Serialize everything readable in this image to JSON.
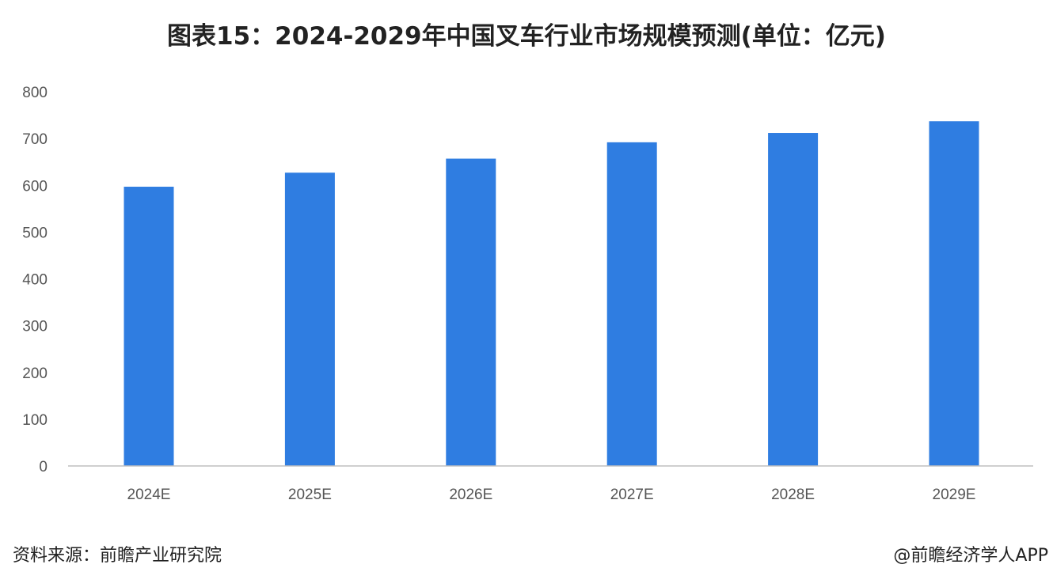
{
  "title": "图表15：2024-2029年中国叉车行业市场规模预测(单位：亿元)",
  "footer": {
    "source": "资料来源：前瞻产业研究院",
    "credit": "@前瞻经济学人APP"
  },
  "colors": {
    "bar": "#2f7de1",
    "axis": "#bfbfbf"
  },
  "chart_data": {
    "type": "bar",
    "title": "图表15：2024-2029年中国叉车行业市场规模预测(单位：亿元)",
    "categories": [
      "2024E",
      "2025E",
      "2026E",
      "2027E",
      "2028E",
      "2029E"
    ],
    "values": [
      597,
      627,
      657,
      692,
      712,
      737
    ],
    "ylim": [
      0,
      800
    ],
    "yticks": [
      0,
      100,
      200,
      300,
      400,
      500,
      600,
      700,
      800
    ],
    "xlabel": "",
    "ylabel": "",
    "grid": false,
    "legend": "none"
  }
}
